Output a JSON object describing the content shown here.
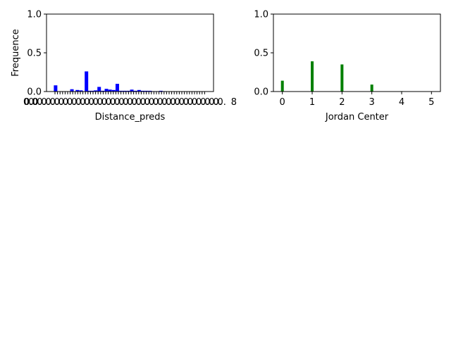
{
  "chart_data": [
    {
      "type": "bar",
      "title": "",
      "xlabel": "Distance_preds",
      "ylabel": "Frequence",
      "ylim": [
        0,
        1.0
      ],
      "yticks": [
        "0.0",
        "0.5",
        "1.0"
      ],
      "x_ticklabels_note": "dense overlapping tick labels",
      "x_tick_first": "0.0",
      "x_tick_last": "8",
      "color": "#0000ff",
      "x": [
        0.15,
        0.6,
        0.75,
        0.85,
        1.0,
        1.05,
        1.15,
        1.25,
        1.35,
        1.45,
        1.55,
        1.65,
        1.75,
        1.85,
        1.95,
        2.05,
        2.15,
        2.25,
        2.35,
        2.45,
        2.55,
        2.65,
        2.75,
        2.85,
        2.95,
        3.05,
        3.15
      ],
      "values": [
        0.08,
        0.03,
        0.02,
        0.015,
        0.26,
        0.01,
        0.01,
        0.015,
        0.06,
        0.01,
        0.035,
        0.025,
        0.02,
        0.1,
        0.01,
        0.01,
        0.01,
        0.025,
        0.01,
        0.02,
        0.01,
        0.01,
        0.01,
        0.005,
        0.005,
        0.01,
        0.005
      ],
      "xlim": [
        -0.1,
        4.5
      ]
    },
    {
      "type": "bar",
      "title": "",
      "xlabel": "Jordan Center",
      "ylabel": "",
      "ylim": [
        0,
        1.0
      ],
      "yticks": [
        "0.0",
        "0.5",
        "1.0"
      ],
      "xticks": [
        "0",
        "1",
        "2",
        "3",
        "4",
        "5"
      ],
      "xlim": [
        -0.3,
        5.3
      ],
      "color": "#008000",
      "x": [
        0,
        1,
        2,
        3,
        4
      ],
      "values": [
        0.14,
        0.39,
        0.35,
        0.09,
        0.005
      ]
    }
  ]
}
